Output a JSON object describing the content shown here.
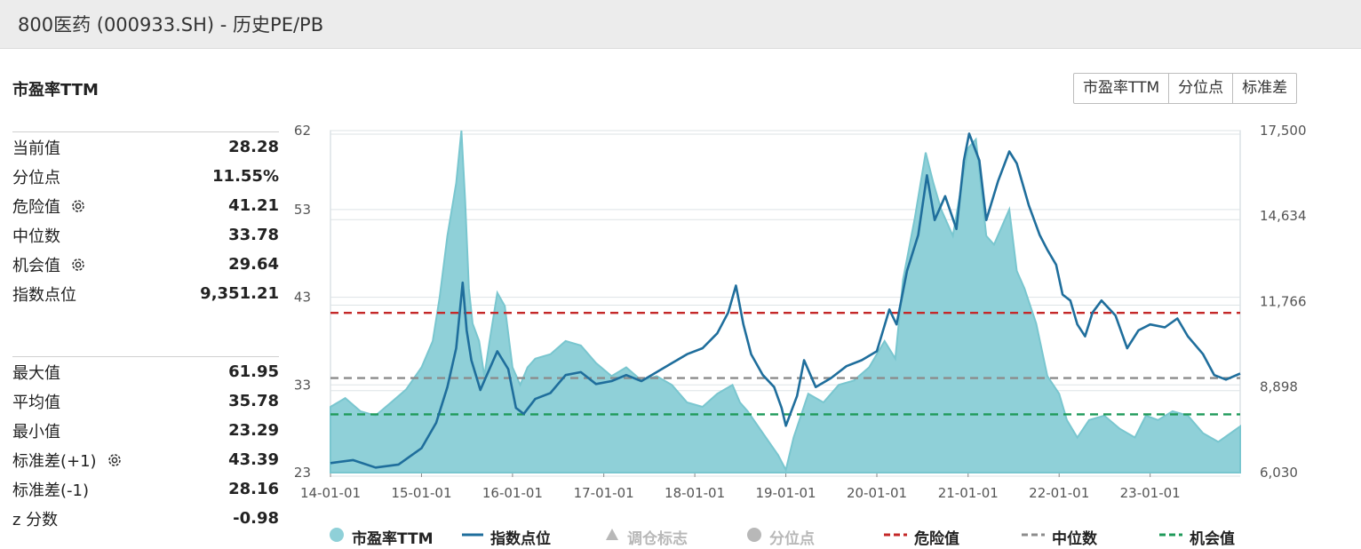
{
  "header": {
    "title": "800医药 (000933.SH) - 历史PE/PB"
  },
  "section_title": "市盈率TTM",
  "toolbar": {
    "buttons": [
      "市盈率TTM",
      "分位点",
      "标准差"
    ]
  },
  "stats_group1": [
    {
      "label": "当前值",
      "value": "28.28",
      "gear": false
    },
    {
      "label": "分位点",
      "value": "11.55%",
      "gear": false
    },
    {
      "label": "危险值",
      "value": "41.21",
      "gear": true
    },
    {
      "label": "中位数",
      "value": "33.78",
      "gear": false
    },
    {
      "label": "机会值",
      "value": "29.64",
      "gear": true
    },
    {
      "label": "指数点位",
      "value": "9,351.21",
      "gear": false
    }
  ],
  "stats_group2": [
    {
      "label": "最大值",
      "value": "61.95",
      "gear": false
    },
    {
      "label": "平均值",
      "value": "35.78",
      "gear": false
    },
    {
      "label": "最小值",
      "value": "23.29",
      "gear": false
    },
    {
      "label": "标准差(+1)",
      "value": "43.39",
      "gear": true
    },
    {
      "label": "标准差(-1)",
      "value": "28.16",
      "gear": false
    },
    {
      "label": "z 分数",
      "value": "-0.98",
      "gear": false
    }
  ],
  "colors": {
    "pe_fill": "#8fd0d8",
    "pe_line": "#79c6cf",
    "index_line": "#1f6e9c",
    "danger": "#c42828",
    "median": "#8c8c8c",
    "opportunity": "#1f9a5a",
    "grid": "#dde3e6",
    "axis_text": "#555555",
    "legend_dim": "#b8b8b8"
  },
  "chart_data": {
    "type": "area",
    "x_tick_labels": [
      "14-01-01",
      "15-01-01",
      "16-01-01",
      "17-01-01",
      "18-01-01",
      "19-01-01",
      "20-01-01",
      "21-01-01",
      "22-01-01",
      "23-01-01"
    ],
    "x_range": [
      "2014-01-01",
      "2023-12-28"
    ],
    "y_left": {
      "min": 23,
      "max": 62,
      "ticks": [
        "62",
        "53",
        "43",
        "33",
        "23"
      ],
      "tick_values": [
        62,
        53,
        43,
        33,
        23
      ]
    },
    "y_right": {
      "min": 6030,
      "max": 17500,
      "ticks": [
        "17,500",
        "14,634",
        "11,766",
        "8,898",
        "6,030"
      ],
      "tick_values": [
        17500,
        14634,
        11766,
        8898,
        6030
      ]
    },
    "reference_lines": [
      {
        "name": "危险值",
        "value": 41.21
      },
      {
        "name": "中位数",
        "value": 33.78
      },
      {
        "name": "机会值",
        "value": 29.64
      }
    ],
    "series": [
      {
        "name": "市盈率TTM",
        "axis": "left",
        "style": "area",
        "points": [
          [
            "2014-01-01",
            30.5
          ],
          [
            "2014-03-01",
            31.5
          ],
          [
            "2014-05-01",
            30.0
          ],
          [
            "2014-07-01",
            29.5
          ],
          [
            "2014-09-01",
            31.0
          ],
          [
            "2014-11-01",
            32.5
          ],
          [
            "2015-01-01",
            35.0
          ],
          [
            "2015-02-15",
            38.0
          ],
          [
            "2015-03-15",
            43.0
          ],
          [
            "2015-04-15",
            50.0
          ],
          [
            "2015-05-20",
            56.0
          ],
          [
            "2015-06-10",
            62.0
          ],
          [
            "2015-06-25",
            54.0
          ],
          [
            "2015-07-10",
            44.0
          ],
          [
            "2015-07-25",
            40.0
          ],
          [
            "2015-08-20",
            38.0
          ],
          [
            "2015-09-10",
            34.0
          ],
          [
            "2015-10-01",
            38.0
          ],
          [
            "2015-11-01",
            43.5
          ],
          [
            "2015-12-01",
            42.0
          ],
          [
            "2016-01-01",
            35.0
          ],
          [
            "2016-02-01",
            33.0
          ],
          [
            "2016-03-01",
            35.0
          ],
          [
            "2016-04-01",
            36.0
          ],
          [
            "2016-06-01",
            36.5
          ],
          [
            "2016-08-01",
            38.0
          ],
          [
            "2016-10-01",
            37.5
          ],
          [
            "2016-12-01",
            35.5
          ],
          [
            "2017-02-01",
            34.0
          ],
          [
            "2017-04-01",
            35.0
          ],
          [
            "2017-06-01",
            33.5
          ],
          [
            "2017-08-01",
            34.0
          ],
          [
            "2017-10-01",
            33.0
          ],
          [
            "2017-12-01",
            31.0
          ],
          [
            "2018-02-01",
            30.5
          ],
          [
            "2018-04-01",
            32.0
          ],
          [
            "2018-06-01",
            33.0
          ],
          [
            "2018-07-01",
            31.0
          ],
          [
            "2018-08-01",
            30.0
          ],
          [
            "2018-10-01",
            27.5
          ],
          [
            "2018-12-01",
            25.0
          ],
          [
            "2019-01-01",
            23.3
          ],
          [
            "2019-02-01",
            27.0
          ],
          [
            "2019-04-01",
            32.0
          ],
          [
            "2019-06-01",
            31.0
          ],
          [
            "2019-08-01",
            33.0
          ],
          [
            "2019-10-01",
            33.5
          ],
          [
            "2019-12-01",
            35.0
          ],
          [
            "2020-02-01",
            38.0
          ],
          [
            "2020-03-15",
            36.0
          ],
          [
            "2020-04-15",
            45.0
          ],
          [
            "2020-06-01",
            52.0
          ],
          [
            "2020-07-15",
            59.5
          ],
          [
            "2020-08-15",
            56.0
          ],
          [
            "2020-09-15",
            53.0
          ],
          [
            "2020-11-01",
            50.0
          ],
          [
            "2020-12-01",
            55.0
          ],
          [
            "2021-01-01",
            60.0
          ],
          [
            "2021-02-01",
            61.0
          ],
          [
            "2021-03-15",
            50.0
          ],
          [
            "2021-04-15",
            49.0
          ],
          [
            "2021-06-15",
            53.0
          ],
          [
            "2021-07-15",
            46.0
          ],
          [
            "2021-08-15",
            44.0
          ],
          [
            "2021-10-01",
            40.0
          ],
          [
            "2021-11-15",
            34.0
          ],
          [
            "2022-01-01",
            32.0
          ],
          [
            "2022-02-01",
            29.0
          ],
          [
            "2022-03-15",
            27.0
          ],
          [
            "2022-05-01",
            29.0
          ],
          [
            "2022-07-01",
            29.5
          ],
          [
            "2022-09-01",
            28.0
          ],
          [
            "2022-11-01",
            27.0
          ],
          [
            "2022-12-15",
            29.5
          ],
          [
            "2023-02-01",
            29.0
          ],
          [
            "2023-04-01",
            30.0
          ],
          [
            "2023-06-01",
            29.5
          ],
          [
            "2023-08-01",
            27.5
          ],
          [
            "2023-10-01",
            26.5
          ],
          [
            "2023-12-28",
            28.28
          ]
        ]
      },
      {
        "name": "指数点位",
        "axis": "right",
        "style": "line",
        "points": [
          [
            "2014-01-01",
            6350
          ],
          [
            "2014-04-01",
            6450
          ],
          [
            "2014-07-01",
            6200
          ],
          [
            "2014-10-01",
            6300
          ],
          [
            "2015-01-01",
            6850
          ],
          [
            "2015-03-01",
            7700
          ],
          [
            "2015-04-15",
            8900
          ],
          [
            "2015-05-20",
            10200
          ],
          [
            "2015-06-15",
            12400
          ],
          [
            "2015-07-01",
            10800
          ],
          [
            "2015-07-20",
            9800
          ],
          [
            "2015-08-25",
            8800
          ],
          [
            "2015-09-20",
            9300
          ],
          [
            "2015-11-01",
            10100
          ],
          [
            "2015-12-15",
            9500
          ],
          [
            "2016-01-15",
            8200
          ],
          [
            "2016-02-15",
            8000
          ],
          [
            "2016-04-01",
            8500
          ],
          [
            "2016-06-01",
            8700
          ],
          [
            "2016-08-01",
            9300
          ],
          [
            "2016-10-01",
            9400
          ],
          [
            "2016-12-01",
            9000
          ],
          [
            "2017-02-01",
            9100
          ],
          [
            "2017-04-01",
            9300
          ],
          [
            "2017-06-01",
            9100
          ],
          [
            "2017-08-01",
            9400
          ],
          [
            "2017-10-01",
            9700
          ],
          [
            "2017-12-01",
            10000
          ],
          [
            "2018-02-01",
            10200
          ],
          [
            "2018-04-01",
            10700
          ],
          [
            "2018-05-15",
            11400
          ],
          [
            "2018-06-15",
            12300
          ],
          [
            "2018-07-15",
            11000
          ],
          [
            "2018-08-15",
            10000
          ],
          [
            "2018-10-01",
            9300
          ],
          [
            "2018-11-15",
            8900
          ],
          [
            "2018-12-15",
            8200
          ],
          [
            "2019-01-01",
            7600
          ],
          [
            "2019-02-15",
            8600
          ],
          [
            "2019-03-15",
            9800
          ],
          [
            "2019-05-01",
            8900
          ],
          [
            "2019-07-01",
            9200
          ],
          [
            "2019-09-01",
            9600
          ],
          [
            "2019-11-01",
            9800
          ],
          [
            "2020-01-01",
            10100
          ],
          [
            "2020-02-20",
            11500
          ],
          [
            "2020-03-20",
            11000
          ],
          [
            "2020-05-01",
            12800
          ],
          [
            "2020-06-15",
            14000
          ],
          [
            "2020-07-20",
            16000
          ],
          [
            "2020-08-20",
            14500
          ],
          [
            "2020-10-01",
            15300
          ],
          [
            "2020-11-15",
            14200
          ],
          [
            "2020-12-15",
            16500
          ],
          [
            "2021-01-05",
            17400
          ],
          [
            "2021-02-15",
            16500
          ],
          [
            "2021-03-15",
            14500
          ],
          [
            "2021-05-01",
            15800
          ],
          [
            "2021-06-15",
            16800
          ],
          [
            "2021-07-15",
            16400
          ],
          [
            "2021-09-01",
            15000
          ],
          [
            "2021-10-15",
            14000
          ],
          [
            "2021-11-15",
            13500
          ],
          [
            "2021-12-20",
            13000
          ],
          [
            "2022-01-15",
            12000
          ],
          [
            "2022-02-15",
            11800
          ],
          [
            "2022-03-15",
            11000
          ],
          [
            "2022-04-15",
            10600
          ],
          [
            "2022-05-15",
            11400
          ],
          [
            "2022-06-20",
            11800
          ],
          [
            "2022-08-15",
            11300
          ],
          [
            "2022-10-01",
            10200
          ],
          [
            "2022-11-15",
            10800
          ],
          [
            "2023-01-01",
            11000
          ],
          [
            "2023-03-01",
            10900
          ],
          [
            "2023-04-20",
            11200
          ],
          [
            "2023-06-01",
            10600
          ],
          [
            "2023-08-01",
            10000
          ],
          [
            "2023-09-15",
            9300
          ],
          [
            "2023-11-01",
            9150
          ],
          [
            "2023-12-28",
            9351.21
          ]
        ]
      }
    ],
    "legend": [
      {
        "name": "市盈率TTM",
        "symbol": "circle",
        "enabled": true
      },
      {
        "name": "指数点位",
        "symbol": "line",
        "enabled": true
      },
      {
        "name": "调仓标志",
        "symbol": "triangle",
        "enabled": false
      },
      {
        "name": "分位点",
        "symbol": "circle",
        "enabled": false
      },
      {
        "name": "危险值",
        "symbol": "dash",
        "enabled": true
      },
      {
        "name": "中位数",
        "symbol": "dash",
        "enabled": true
      },
      {
        "name": "机会值",
        "symbol": "dash",
        "enabled": true
      }
    ]
  }
}
